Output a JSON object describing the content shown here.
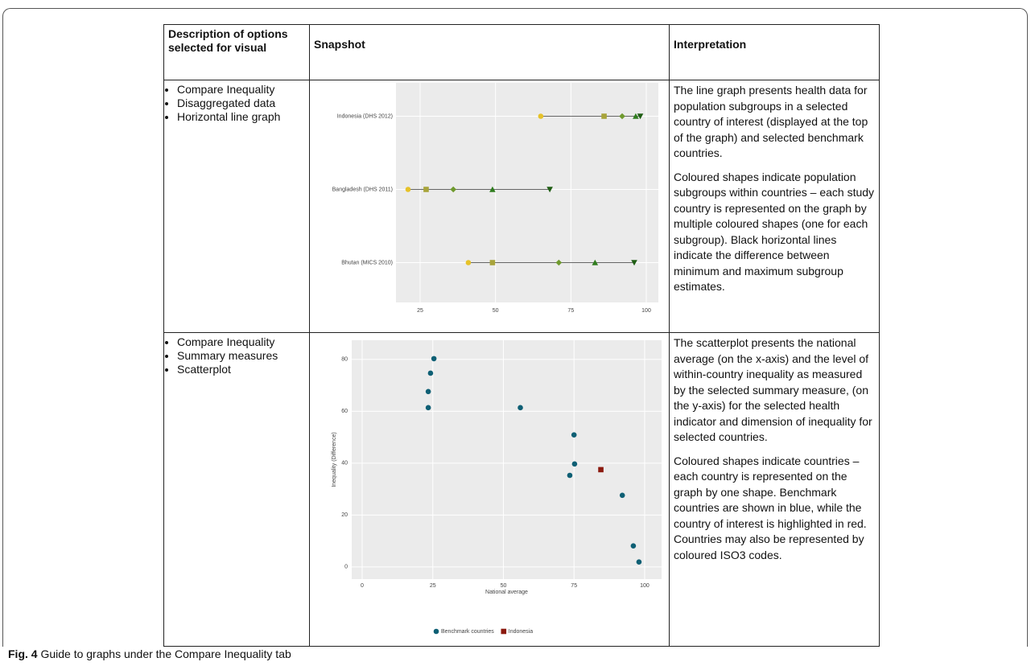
{
  "table": {
    "headers": [
      "Description of options selected for visual",
      "Snapshot",
      "Interpretation"
    ],
    "rows": [
      {
        "options": [
          "Compare Inequality",
          "Disaggregated data",
          "Horizontal line graph"
        ],
        "interpretation": [
          "The line graph presents health data for population subgroups in a selected country of interest (displayed at the top of the graph) and selected benchmark countries.",
          "Coloured shapes indicate population subgroups within countries – each study country is represented on the graph by multiple coloured shapes (one for each subgroup). Black horizontal lines indicate the difference between minimum and maximum subgroup estimates."
        ]
      },
      {
        "options": [
          "Compare Inequality",
          "Summary measures",
          "Scatterplot"
        ],
        "interpretation": [
          "The scatterplot presents the national average (on the x-axis) and the level of within-country inequality as measured by the selected summary measure, (on the y-axis) for the selected health indicator and dimension of inequality for selected countries.",
          "Coloured shapes indicate countries – each country is represented on the graph by one shape. Benchmark countries are shown in blue, while the country of interest is highlighted in red. Countries may also be represented by coloured ISO3 codes."
        ]
      }
    ]
  },
  "chart_data": [
    {
      "type": "dot",
      "categories": [
        "Indonesia (DHS 2012)",
        "Bangladesh (DHS 2011)",
        "Bhutan (MICS 2010)"
      ],
      "series": [
        {
          "color": "#e6c229",
          "marker": "circle",
          "values": [
            65,
            21,
            41
          ]
        },
        {
          "color": "#a8a43a",
          "marker": "square",
          "values": [
            86,
            27,
            49
          ]
        },
        {
          "color": "#6f9a2e",
          "marker": "diamond",
          "values": [
            92,
            36,
            71
          ]
        },
        {
          "color": "#2f7d1e",
          "marker": "triangle",
          "values": [
            96.5,
            49,
            83
          ]
        },
        {
          "color": "#1f5e14",
          "marker": "triangle-down",
          "values": [
            98,
            68,
            96
          ]
        }
      ],
      "xlim": [
        17,
        104
      ],
      "xticks": [
        25,
        50,
        75,
        100
      ],
      "grid": true
    },
    {
      "type": "scatter",
      "xlabel": "National average",
      "ylabel": "Inequality (Difference)",
      "series": [
        {
          "name": "Benchmark countries",
          "color": "#0e5f74",
          "marker": "circle",
          "x": [
            25.4,
            24.2,
            23.4,
            23.4,
            56,
            75,
            75.2,
            73.5,
            92.1,
            96,
            98
          ],
          "values": [
            80.3,
            74.7,
            67.6,
            61.4,
            61.4,
            50.9,
            39.7,
            35.3,
            27.6,
            8.1,
            1.9
          ]
        },
        {
          "name": "Indonesia",
          "color": "#8b1a0f",
          "marker": "square",
          "x": [
            84.5
          ],
          "values": [
            37.5
          ]
        }
      ],
      "xlim": [
        -3.7,
        106
      ],
      "ylim": [
        -4.7,
        87.4
      ],
      "xticks": [
        0,
        25,
        50,
        75,
        100
      ],
      "yticks": [
        0,
        20,
        40,
        60,
        80
      ],
      "grid": true,
      "legend": "bottom"
    }
  ],
  "caption": {
    "label": "Fig. 4",
    "text": "Guide to graphs under the Compare Inequality tab"
  }
}
